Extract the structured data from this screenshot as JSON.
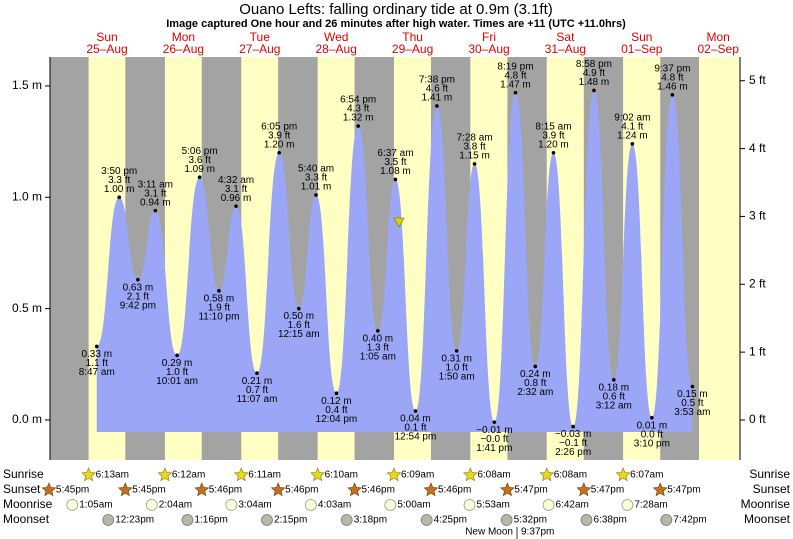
{
  "chart_data": {
    "type": "tide",
    "title": "Ouano Lefts: falling  ordinary tide at 0.9m (3.1ft)",
    "subtitle": "Image captured One hour and 26 minutes after high water. Times are +11 (UTC +11.0hrs)",
    "days": [
      "Sun",
      "Mon",
      "Tue",
      "Wed",
      "Thu",
      "Fri",
      "Sat",
      "Sun",
      "Mon"
    ],
    "dates": [
      "25–Aug",
      "26–Aug",
      "27–Aug",
      "28–Aug",
      "29–Aug",
      "30–Aug",
      "31–Aug",
      "01–Sep",
      "02–Sep"
    ],
    "ylim": [
      -0.18,
      1.63
    ],
    "yticks": [
      {
        "value": 0,
        "label": "0.0 m"
      },
      {
        "value": 0.5,
        "label": "0.5 m"
      },
      {
        "value": 1,
        "label": "1.0 m"
      },
      {
        "value": 1.5,
        "label": "1.5 m"
      }
    ],
    "y2lim": [
      -0.59,
      5.35
    ],
    "y2ticks": [
      {
        "value": 0,
        "label": "0 ft"
      },
      {
        "value": 1,
        "label": "1 ft"
      },
      {
        "value": 2,
        "label": "2 ft"
      },
      {
        "value": 3,
        "label": "3 ft"
      },
      {
        "value": 4,
        "label": "4 ft"
      },
      {
        "value": 5,
        "label": "5 ft"
      }
    ],
    "color": "#9ba6f6",
    "extremes": {
      "times": [
        "8:47 am",
        "3:50 pm",
        "9:42 pm",
        "3:11 am",
        "10:01 am",
        "5:06 pm",
        "11:10 pm",
        "4:32 am",
        "11:07 am",
        "6:05 pm",
        "12:15 am",
        "5:40 am",
        "12:04 pm",
        "6:54 pm",
        "1:05 am",
        "6:37 am",
        "12:54 pm",
        "7:38 pm",
        "1:50 am",
        "7:28 am",
        "1:41 pm",
        "8:19 pm",
        "2:32 am",
        "8:15 am",
        "2:26 pm",
        "8:58 pm",
        "3:12 am",
        "9:02 am",
        "3:10 pm",
        "9:37 pm",
        "3:53 am"
      ],
      "values": [
        0.33,
        1.0,
        0.63,
        0.94,
        0.29,
        1.09,
        0.58,
        0.96,
        0.21,
        1.2,
        0.5,
        1.01,
        0.12,
        1.32,
        0.4,
        1.08,
        0.04,
        1.41,
        0.31,
        1.15,
        -0.01,
        1.47,
        0.24,
        1.2,
        -0.03,
        1.48,
        0.18,
        1.24,
        0.01,
        1.46,
        0.15
      ],
      "value_labels": [
        "0.33 m",
        "1.00 m",
        "0.63 m",
        "0.94 m",
        "0.29 m",
        "1.09 m",
        "0.58 m",
        "0.96 m",
        "0.21 m",
        "1.20 m",
        "0.50 m",
        "1.01 m",
        "0.12 m",
        "1.32 m",
        "0.40 m",
        "1.08 m",
        "0.04 m",
        "1.41 m",
        "0.31 m",
        "1.15 m",
        "−0.01 m",
        "1.47 m",
        "0.24 m",
        "1.20 m",
        "−0.03 m",
        "1.48 m",
        "0.18 m",
        "1.24 m",
        "0.01 m",
        "1.46 m",
        "0.15 m"
      ],
      "ft_labels": [
        "1.1 ft",
        "3.3 ft",
        "2.1 ft",
        "3.1 ft",
        "1.0 ft",
        "3.6 ft",
        "1.9 ft",
        "3.1 ft",
        "0.7 ft",
        "3.9 ft",
        "1.6 ft",
        "3.3 ft",
        "0.4 ft",
        "4.3 ft",
        "1.3 ft",
        "3.5 ft",
        "0.1 ft",
        "4.6 ft",
        "1.0 ft",
        "3.8 ft",
        "−0.0 ft",
        "4.8 ft",
        "0.8 ft",
        "3.9 ft",
        "−0.1 ft",
        "4.9 ft",
        "0.6 ft",
        "4.1 ft",
        "0.0 ft",
        "4.8 ft",
        "0.5 ft"
      ]
    },
    "sun_moon": [
      {
        "name": "Sunrise",
        "times": [
          "6:13am",
          "6:12am",
          "6:11am",
          "6:10am",
          "6:09am",
          "6:08am",
          "6:08am",
          "6:07am"
        ]
      },
      {
        "name": "Sunset",
        "times": [
          "5:45pm",
          "5:45pm",
          "5:46pm",
          "5:46pm",
          "5:46pm",
          "5:46pm",
          "5:47pm",
          "5:47pm",
          "5:47pm"
        ]
      },
      {
        "name": "Moonrise",
        "times": [
          "1:05am",
          "2:04am",
          "3:04am",
          "4:03am",
          "5:00am",
          "5:53am",
          "6:42am",
          "7:28am"
        ]
      },
      {
        "name": "Moonset",
        "times": [
          "12:23pm",
          "1:16pm",
          "2:15pm",
          "3:18pm",
          "4:25pm",
          "5:32pm",
          "6:38pm",
          "7:42pm"
        ]
      }
    ],
    "moon_phase": {
      "name": "New Moon",
      "time": "9:37pm"
    }
  }
}
